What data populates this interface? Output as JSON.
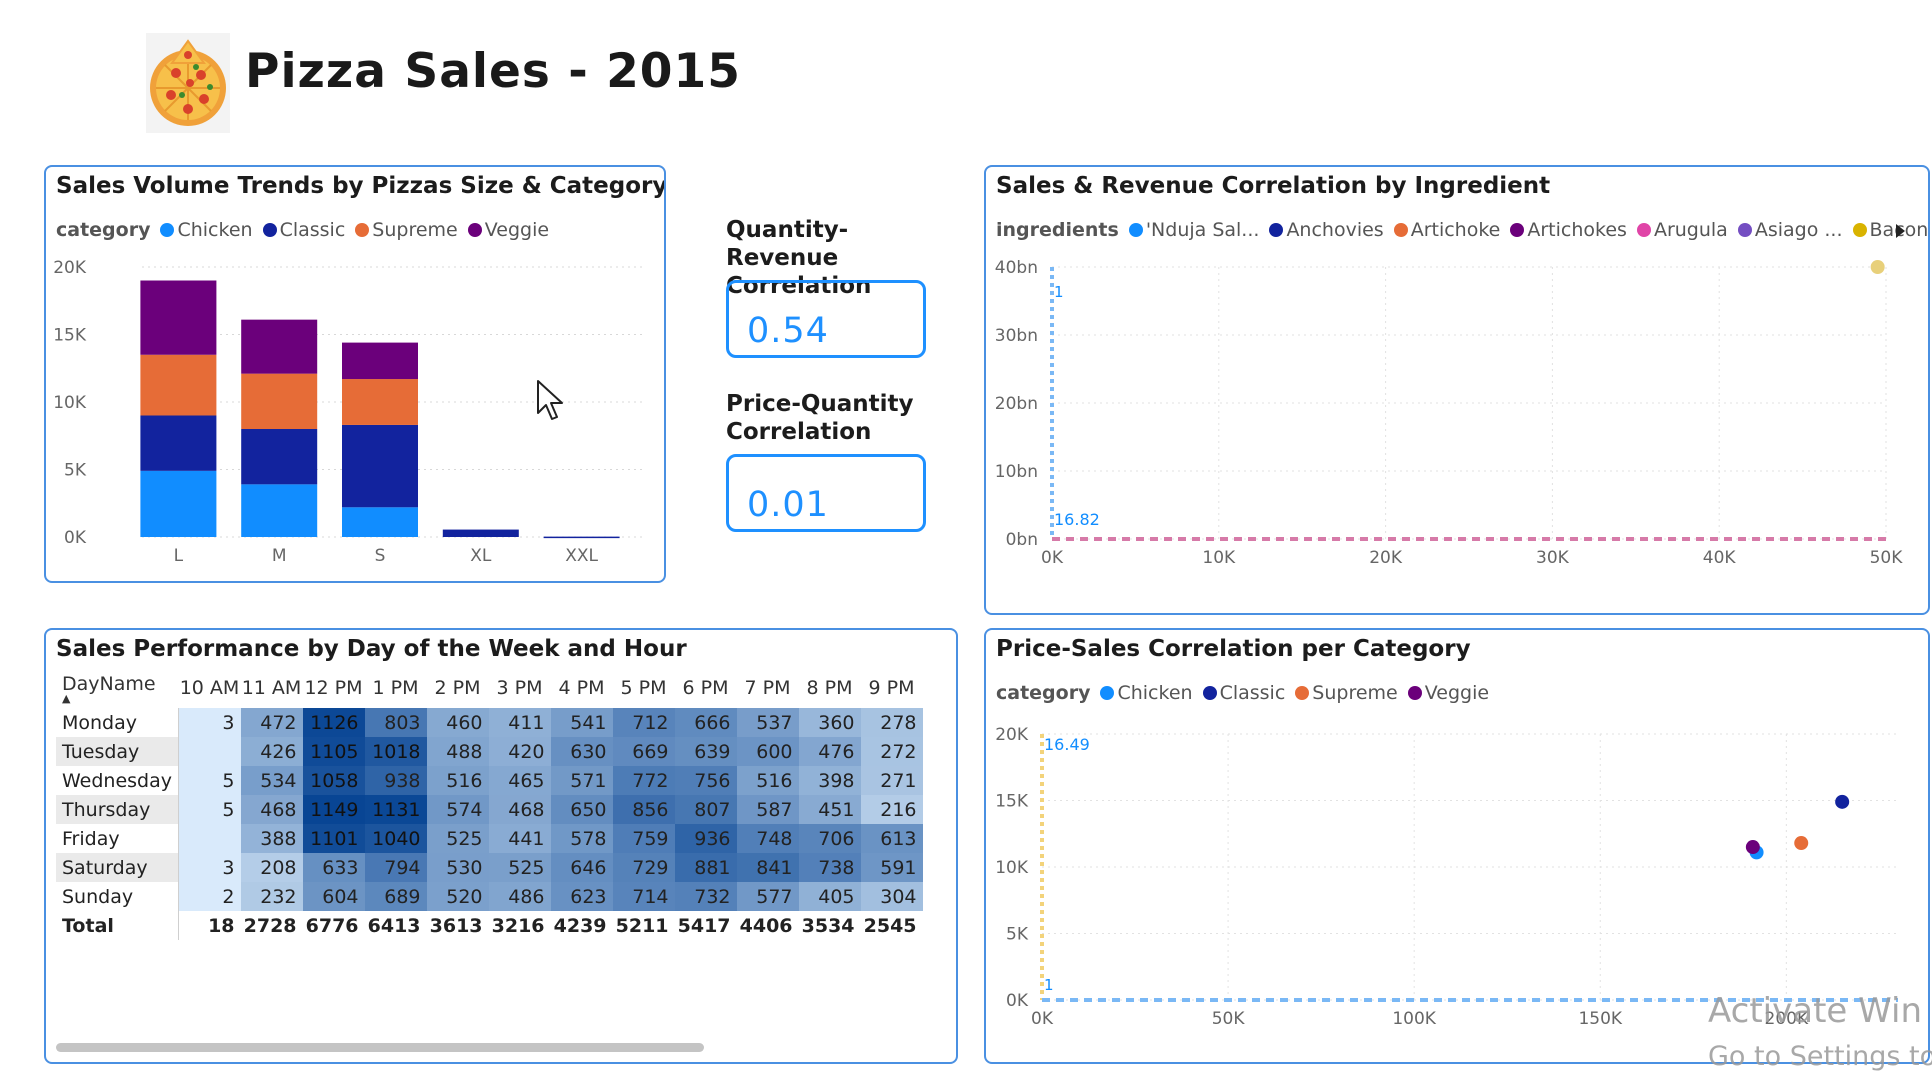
{
  "title": "Pizza Sales - 2015",
  "colors": {
    "chicken": "#118dff",
    "classic": "#12239e",
    "supreme": "#e66c37",
    "veggie": "#6b007b",
    "card_border": "#4a90e2",
    "kpi_accent": "#1e90ff"
  },
  "size_chart": {
    "title": "Sales Volume Trends by Pizzas Size & Category",
    "legend_title": "category",
    "chart_data": {
      "type": "bar",
      "categories": [
        "L",
        "M",
        "S",
        "XL",
        "XXL"
      ],
      "series": [
        {
          "name": "Chicken",
          "values": [
            4900,
            3900,
            2200,
            0,
            0
          ]
        },
        {
          "name": "Classic",
          "values": [
            4100,
            4100,
            6100,
            550,
            28
          ]
        },
        {
          "name": "Supreme",
          "values": [
            4500,
            4100,
            3400,
            0,
            0
          ]
        },
        {
          "name": "Veggie",
          "values": [
            5500,
            4000,
            2700,
            0,
            0
          ]
        }
      ],
      "yticks": [
        "0K",
        "5K",
        "10K",
        "15K",
        "20K"
      ],
      "ylim": [
        0,
        20000
      ]
    }
  },
  "kpi": {
    "qr_label": "Quantity-Revenue Correlation",
    "qr_value": "0.54",
    "pq_label": "Price-Quantity Correlation",
    "pq_value": "0.01"
  },
  "ingredient_chart": {
    "title": "Sales & Revenue Correlation by Ingredient",
    "legend_title": "ingredients",
    "legend": [
      {
        "name": "'Nduja Sal...",
        "color": "#118dff"
      },
      {
        "name": "Anchovies",
        "color": "#12239e"
      },
      {
        "name": "Artichoke",
        "color": "#e66c37"
      },
      {
        "name": "Artichokes",
        "color": "#6b007b"
      },
      {
        "name": "Arugula",
        "color": "#e044a7"
      },
      {
        "name": "Asiago ...",
        "color": "#744ec2"
      },
      {
        "name": "Bacon",
        "color": "#d9b300"
      }
    ],
    "chart_data": {
      "type": "scatter",
      "xticks": [
        "0K",
        "10K",
        "20K",
        "30K",
        "40K",
        "50K"
      ],
      "yticks": [
        "0bn",
        "10bn",
        "20bn",
        "30bn",
        "40bn"
      ],
      "xlim": [
        0,
        50000
      ],
      "ylim": [
        0,
        40
      ],
      "points": [
        {
          "x": 49500,
          "y": 40,
          "color": "#e8d07a"
        }
      ],
      "ref_x_label": "1",
      "ref_y_label": "16.82"
    }
  },
  "heatmap": {
    "title": "Sales Performance by Day of the Week and Hour",
    "row_header": "DayName",
    "hours": [
      "10 AM",
      "11 AM",
      "12 PM",
      "1 PM",
      "2 PM",
      "3 PM",
      "4 PM",
      "5 PM",
      "6 PM",
      "7 PM",
      "8 PM",
      "9 PM"
    ],
    "rows": [
      {
        "day": "Monday",
        "values": [
          "3",
          "472",
          "1126",
          "803",
          "460",
          "411",
          "541",
          "712",
          "666",
          "537",
          "360",
          "278"
        ]
      },
      {
        "day": "Tuesday",
        "values": [
          "",
          "426",
          "1105",
          "1018",
          "488",
          "420",
          "630",
          "669",
          "639",
          "600",
          "476",
          "272"
        ]
      },
      {
        "day": "Wednesday",
        "values": [
          "5",
          "534",
          "1058",
          "938",
          "516",
          "465",
          "571",
          "772",
          "756",
          "516",
          "398",
          "271"
        ]
      },
      {
        "day": "Thursday",
        "values": [
          "5",
          "468",
          "1149",
          "1131",
          "574",
          "468",
          "650",
          "856",
          "807",
          "587",
          "451",
          "216"
        ]
      },
      {
        "day": "Friday",
        "values": [
          "",
          "388",
          "1101",
          "1040",
          "525",
          "441",
          "578",
          "759",
          "936",
          "748",
          "706",
          "613"
        ]
      },
      {
        "day": "Saturday",
        "values": [
          "3",
          "208",
          "633",
          "794",
          "530",
          "525",
          "646",
          "729",
          "881",
          "841",
          "738",
          "591"
        ]
      },
      {
        "day": "Sunday",
        "values": [
          "2",
          "232",
          "604",
          "689",
          "520",
          "486",
          "623",
          "714",
          "732",
          "577",
          "405",
          "304"
        ]
      }
    ],
    "total_label": "Total",
    "totals": [
      "18",
      "2728",
      "6776",
      "6413",
      "3613",
      "3216",
      "4239",
      "5211",
      "5417",
      "4406",
      "3534",
      "2545"
    ]
  },
  "price_chart": {
    "title": "Price-Sales Correlation per Category",
    "legend_title": "category",
    "legend": [
      {
        "name": "Chicken",
        "color": "#118dff"
      },
      {
        "name": "Classic",
        "color": "#12239e"
      },
      {
        "name": "Supreme",
        "color": "#e66c37"
      },
      {
        "name": "Veggie",
        "color": "#6b007b"
      }
    ],
    "chart_data": {
      "type": "scatter",
      "xticks": [
        "0K",
        "50K",
        "100K",
        "150K",
        "200K"
      ],
      "yticks": [
        "0K",
        "5K",
        "10K",
        "15K",
        "20K"
      ],
      "xlim": [
        0,
        230000
      ],
      "ylim": [
        0,
        20000
      ],
      "points": [
        {
          "x": 192000,
          "y": 11100,
          "color": "#118dff"
        },
        {
          "x": 191000,
          "y": 11500,
          "color": "#6b007b"
        },
        {
          "x": 204000,
          "y": 11800,
          "color": "#e66c37"
        },
        {
          "x": 215000,
          "y": 14900,
          "color": "#12239e"
        }
      ],
      "ref_x_label": "1",
      "ref_y_label": "16.49"
    }
  },
  "watermark": {
    "line1": "Activate Win",
    "line2": "Go to Settings to"
  }
}
